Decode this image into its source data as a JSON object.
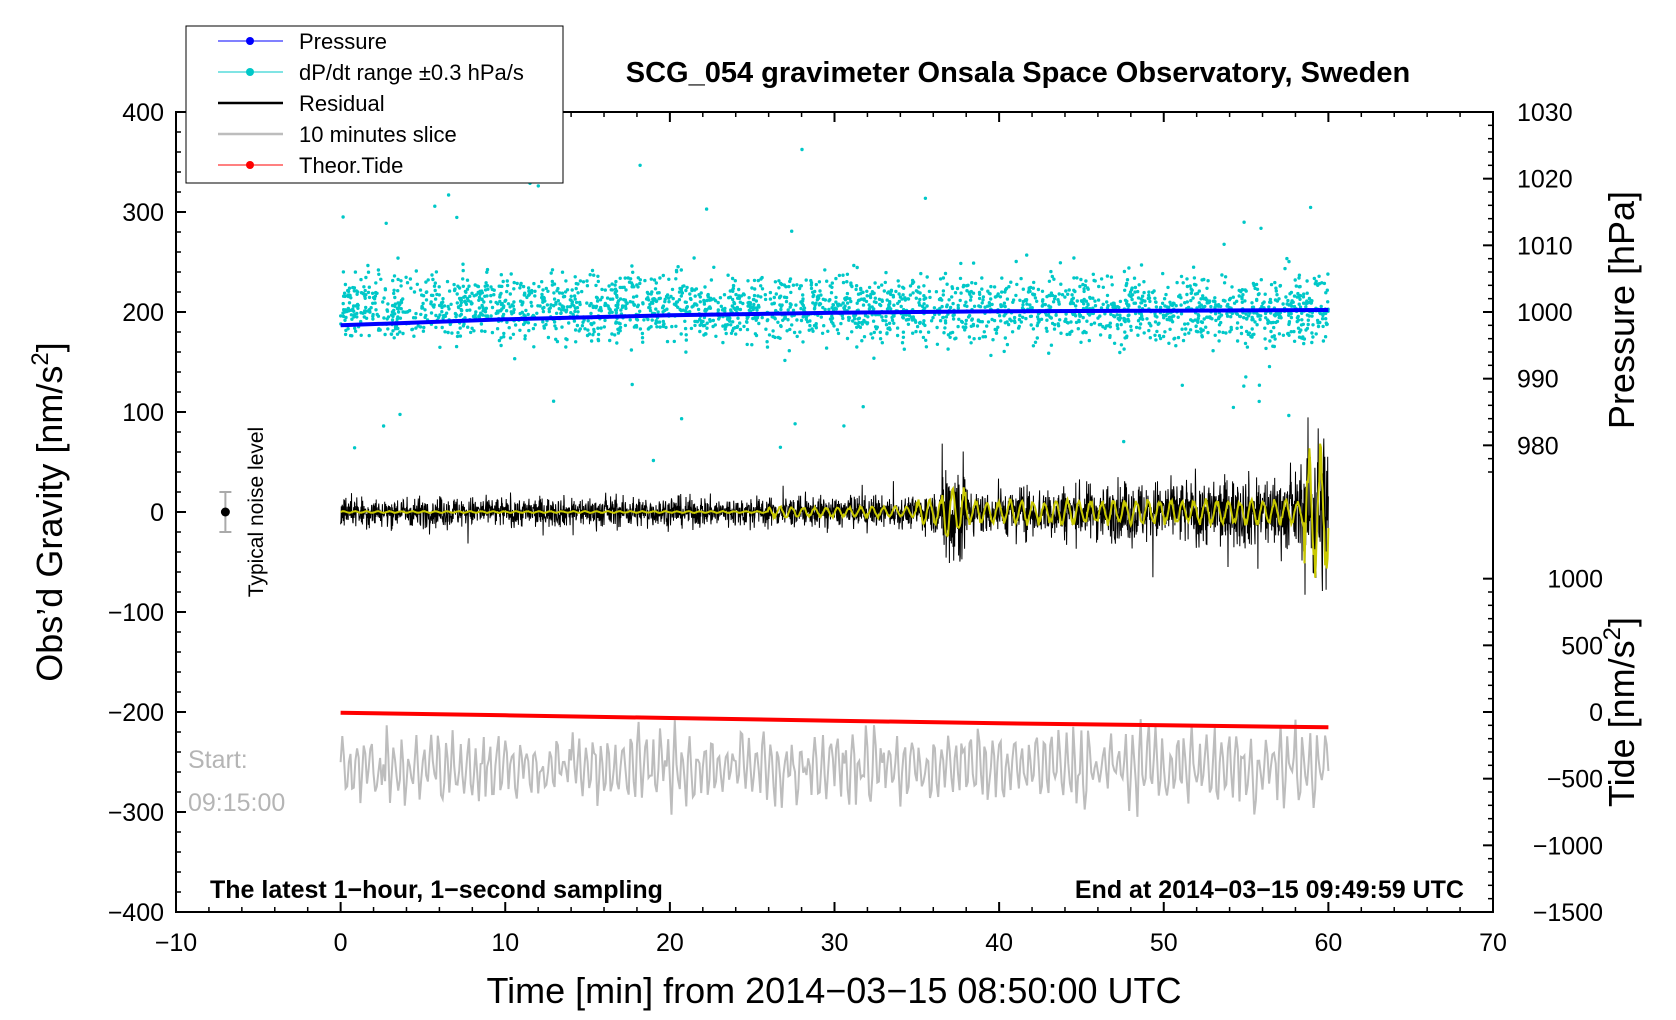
{
  "chart_data": {
    "type": "line",
    "title": "SCG_054 gravimeter Onsala Space Observatory, Sweden",
    "xlabel": "Time [min] from 2014−03−15 08:50:00 UTC",
    "ylabel_left": "Obs’d Gravity [nm/s²]",
    "ylabel_right_top": "Pressure [hPa]",
    "ylabel_right_bottom": "Tide [nm/s²]",
    "xlim": [
      -10,
      70
    ],
    "ylim_left": [
      -400,
      400
    ],
    "x_ticks": [
      "−10",
      "0",
      "10",
      "20",
      "30",
      "40",
      "50",
      "60",
      "70"
    ],
    "x_tick_values": [
      -10,
      0,
      10,
      20,
      30,
      40,
      50,
      60,
      70
    ],
    "y_ticks_left": [
      "400",
      "300",
      "200",
      "100",
      "0",
      "−100",
      "−200",
      "−300",
      "−400"
    ],
    "y_tick_values_left": [
      400,
      300,
      200,
      100,
      0,
      -100,
      -200,
      -300,
      -400
    ],
    "pressure_axis": {
      "ticks": [
        "1030",
        "1020",
        "1010",
        "1000",
        "990",
        "980"
      ],
      "tick_values": [
        1030,
        1020,
        1010,
        1000,
        990,
        980
      ],
      "gravity_equivalent": [
        400,
        333.3,
        266.7,
        200,
        133.3,
        66.7
      ]
    },
    "tide_axis": {
      "ticks": [
        "1000",
        "500",
        "0",
        "−500",
        "−1000",
        "−1500"
      ],
      "tick_values": [
        1000,
        500,
        0,
        -500,
        -1000,
        -1500
      ],
      "gravity_equivalent": [
        -66.7,
        -133.3,
        -200,
        -266.7,
        -333.3,
        -400
      ]
    },
    "series": [
      {
        "name": "Pressure",
        "color": "#0000ff",
        "x": [
          0,
          10,
          20,
          30,
          40,
          50,
          60
        ],
        "pressure_hPa": [
          998.0,
          998.9,
          999.5,
          999.9,
          1000.1,
          1000.2,
          1000.3
        ]
      },
      {
        "name": "dP/dt range ±0.3 hPa/s",
        "color": "#00c8c8",
        "center_gravity": 205,
        "spread": 60
      },
      {
        "name": "Residual",
        "color": "#000000",
        "center_gravity": 0,
        "amplitude_early": 30,
        "amplitude_late": 100
      },
      {
        "name": "10 minutes slice",
        "color": "#bdbdbd",
        "center_gravity": -255,
        "amplitude": 45
      },
      {
        "name": "Theor.Tide",
        "color": "#ff0000",
        "x": [
          0,
          10,
          20,
          30,
          40,
          50,
          60
        ],
        "tide": [
          -5,
          -25,
          -45,
          -65,
          -85,
          -100,
          -115
        ]
      }
    ],
    "legend": [
      {
        "label": "Pressure",
        "color": "#0000ff",
        "marker": "dot"
      },
      {
        "label": "dP/dt range ±0.3 hPa/s",
        "color": "#00c8c8",
        "marker": "dot"
      },
      {
        "label": "Residual",
        "color": "#000000",
        "marker": "line"
      },
      {
        "label": "10 minutes slice",
        "color": "#bdbdbd",
        "marker": "line"
      },
      {
        "label": "Theor.Tide",
        "color": "#ff0000",
        "marker": "dot"
      }
    ],
    "legend_position": "top-left",
    "noise_level": {
      "label": "Typical noise level",
      "x": -7,
      "center": 0,
      "half_range": 20
    },
    "start_label": [
      "Start:",
      "09:15:00"
    ],
    "note_left": "The latest 1−hour, 1−second sampling",
    "note_right": "End at 2014−03−15 09:49:59 UTC",
    "colors": {
      "smoothed": "#c8c800"
    }
  }
}
